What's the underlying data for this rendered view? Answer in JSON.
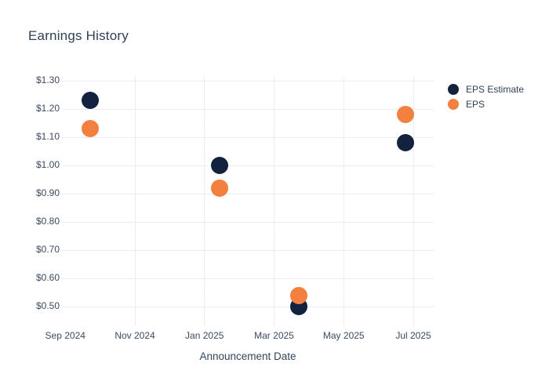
{
  "title": "Earnings History",
  "colors": {
    "background": "#ffffff",
    "eps_estimate": "#13233f",
    "eps": "#f3803e",
    "gridline": "#e9eef6",
    "title_text": "#2f4154",
    "tick_text": "#3c4b61"
  },
  "legend": {
    "items": [
      {
        "label": "EPS Estimate",
        "color": "#13233f"
      },
      {
        "label": "EPS",
        "color": "#f3803e"
      }
    ]
  },
  "chart_data": {
    "type": "scatter",
    "title": "Earnings History",
    "xlabel": "Announcement Date",
    "ylabel": "",
    "grid": true,
    "legend_position": "right-top",
    "ylim": [
      0.43,
      1.32
    ],
    "y_tick_prefix": "$",
    "y_ticks": [
      {
        "label": "$1.30",
        "value": 1.3
      },
      {
        "label": "$1.20",
        "value": 1.2
      },
      {
        "label": "$1.10",
        "value": 1.1
      },
      {
        "label": "$1.00",
        "value": 1.0
      },
      {
        "label": "$0.90",
        "value": 0.9
      },
      {
        "label": "$0.80",
        "value": 0.8
      },
      {
        "label": "$0.70",
        "value": 0.7
      },
      {
        "label": "$0.60",
        "value": 0.6
      },
      {
        "label": "$0.50",
        "value": 0.5
      }
    ],
    "x_ticks": [
      {
        "label": "Sep 2024",
        "month_offset": 0,
        "gridline": false
      },
      {
        "label": "Nov 2024",
        "month_offset": 2,
        "gridline": true
      },
      {
        "label": "Jan 2025",
        "month_offset": 4,
        "gridline": true
      },
      {
        "label": "Mar 2025",
        "month_offset": 6,
        "gridline": true
      },
      {
        "label": "May 2025",
        "month_offset": 8,
        "gridline": true
      },
      {
        "label": "Jul 2025",
        "month_offset": 10,
        "gridline": true
      }
    ],
    "series": [
      {
        "name": "EPS Estimate",
        "color": "#13233f",
        "points": [
          {
            "date": "2024-09-22",
            "month_offset": 0.72,
            "value": 1.23
          },
          {
            "date": "2025-01-14",
            "month_offset": 4.43,
            "value": 1.0
          },
          {
            "date": "2025-03-22",
            "month_offset": 6.71,
            "value": 0.5
          },
          {
            "date": "2025-06-24",
            "month_offset": 9.77,
            "value": 1.08
          }
        ]
      },
      {
        "name": "EPS",
        "color": "#f3803e",
        "points": [
          {
            "date": "2024-09-22",
            "month_offset": 0.72,
            "value": 1.13
          },
          {
            "date": "2025-01-14",
            "month_offset": 4.43,
            "value": 0.92
          },
          {
            "date": "2025-03-22",
            "month_offset": 6.71,
            "value": 0.54
          },
          {
            "date": "2025-06-24",
            "month_offset": 9.77,
            "value": 1.18
          }
        ]
      }
    ]
  }
}
